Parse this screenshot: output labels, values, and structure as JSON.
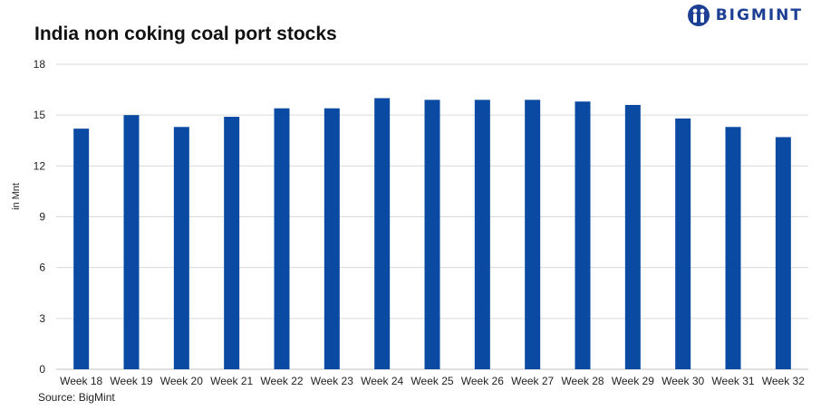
{
  "header": {
    "title": "India non coking coal port stocks",
    "brand": "BIGMINT",
    "brand_color": "#1c3f94",
    "logo_icon": "bigmint-logo-icon"
  },
  "footer": {
    "source": "Source: BigMint"
  },
  "chart_data": {
    "type": "bar",
    "title": "India non coking coal port stocks",
    "xlabel": "",
    "ylabel": "in Mnt",
    "ylim": [
      0,
      18
    ],
    "yticks": [
      0,
      3,
      6,
      9,
      12,
      15,
      18
    ],
    "grid": true,
    "legend": "none",
    "bar_color": "#0b4aa2",
    "categories": [
      "Week 18",
      "Week 19",
      "Week 20",
      "Week 21",
      "Week 22",
      "Week 23",
      "Week 24",
      "Week 25",
      "Week 26",
      "Week 27",
      "Week 28",
      "Week 29",
      "Week 30",
      "Week 31",
      "Week 32"
    ],
    "values": [
      14.2,
      15.0,
      14.3,
      14.9,
      15.4,
      15.4,
      16.0,
      15.9,
      15.9,
      15.9,
      15.8,
      15.6,
      14.8,
      14.3,
      13.7
    ]
  }
}
